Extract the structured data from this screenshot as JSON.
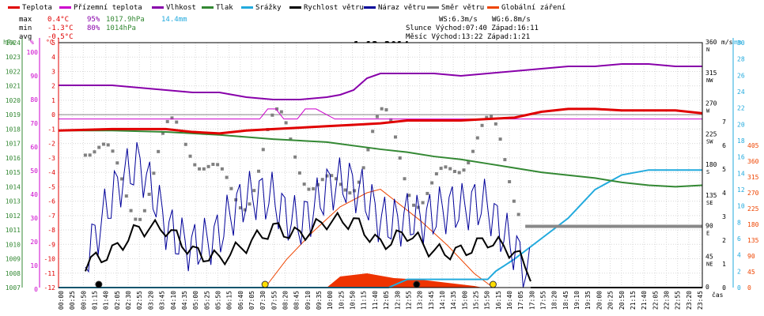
{
  "chart_data": {
    "type": "line",
    "title": "1.12.2014",
    "legend": [
      {
        "name": "Teplota",
        "color": "#e00000"
      },
      {
        "name": "Přízemní teplota",
        "color": "#cc00cc"
      },
      {
        "name": "Vlhkost",
        "color": "#8800aa"
      },
      {
        "name": "Tlak",
        "color": "#338833"
      },
      {
        "name": "Srážky",
        "color": "#22aadd"
      },
      {
        "name": "Rychlost větru",
        "color": "#000000"
      },
      {
        "name": "Náraz větru",
        "color": "#000099"
      },
      {
        "name": "Směr větru",
        "color": "#777777"
      },
      {
        "name": "Globální záření",
        "color": "#ee4400"
      }
    ],
    "stats": {
      "max_label": "max",
      "min_label": "min",
      "avg_label": "avg",
      "max_temp": "0.4°C",
      "max_hum": "95%",
      "max_pres": "1017.9hPa",
      "max_rain": "14.4mm",
      "min_temp": "-1.3°C",
      "min_hum": "80%",
      "min_pres": "1014hPa",
      "avg_temp": "-0.5°C"
    },
    "info": {
      "ws": "WS:6.3m/s",
      "wg": "WG:6.8m/s",
      "sun": "Slunce Východ:07:40   Západ:16:11",
      "moon": "Měsíc  Východ:13:22   Západ:1:21"
    },
    "axes": {
      "hpa_label": "hPa",
      "pct_label": "%",
      "c_label": "°C",
      "ms_label": "m/s",
      "mm_label": "mm",
      "x_label": "čas",
      "hpa_ticks": [
        "1024",
        "1023",
        "1022",
        "1021",
        "1020",
        "1019",
        "1018",
        "1017",
        "1016",
        "1015",
        "1014",
        "1013",
        "1012",
        "1011",
        "1010",
        "1009",
        "1008",
        "1007"
      ],
      "pct_ticks": [
        "100",
        "90",
        "80",
        "70",
        "60",
        "50",
        "40",
        "30",
        "20",
        "10",
        "0"
      ],
      "c_ticks": [
        "5",
        "4",
        "3",
        "2",
        "1",
        "0",
        "-1",
        "-2",
        "-3",
        "-4",
        "-5",
        "-6",
        "-7",
        "-8",
        "-9",
        "-10",
        "-11",
        "-12"
      ],
      "dir_ticks": [
        {
          "deg": "360",
          "dir": "N"
        },
        {
          "deg": "315",
          "dir": "NW"
        },
        {
          "deg": "270",
          "dir": "W"
        },
        {
          "deg": "225",
          "dir": "SW"
        },
        {
          "deg": "180",
          "dir": "S"
        },
        {
          "deg": "135",
          "dir": "SE"
        },
        {
          "deg": "90",
          "dir": "E"
        },
        {
          "deg": "45",
          "dir": "NE"
        },
        {
          "deg": "0",
          "dir": ""
        }
      ],
      "ms_ticks": [
        "7",
        "6",
        "5",
        "4",
        "3",
        "2",
        "1",
        "0"
      ],
      "mm_ticks": [
        "30",
        "28",
        "26",
        "24",
        "22",
        "20",
        "18",
        "16",
        "14",
        "12",
        "10",
        "8",
        "6",
        "4",
        "2",
        "0"
      ],
      "rad_ticks": [
        "405",
        "360",
        "315",
        "270",
        "225",
        "180",
        "135",
        "90",
        "45",
        "0"
      ]
    },
    "x_ticks": [
      "00:00",
      "00:25",
      "00:50",
      "01:15",
      "01:40",
      "02:05",
      "02:30",
      "02:55",
      "03:20",
      "03:45",
      "04:10",
      "04:35",
      "05:00",
      "05:25",
      "05:50",
      "06:15",
      "06:40",
      "07:05",
      "07:30",
      "07:55",
      "08:20",
      "08:45",
      "09:10",
      "09:35",
      "10:00",
      "10:25",
      "10:50",
      "11:15",
      "11:40",
      "12:05",
      "12:30",
      "12:55",
      "13:20",
      "13:45",
      "14:10",
      "14:35",
      "15:00",
      "15:25",
      "15:50",
      "16:15",
      "16:40",
      "17:05",
      "17:30",
      "17:55",
      "18:20",
      "18:45",
      "19:10",
      "19:35",
      "20:00",
      "20:25",
      "20:50",
      "21:15",
      "21:40",
      "22:05",
      "22:30",
      "22:55",
      "23:20",
      "23:45"
    ],
    "series": [
      {
        "name": "Vlhkost",
        "unit": "%",
        "x": [
          0,
          1,
          2,
          3,
          4,
          5,
          6,
          7,
          8,
          9,
          10,
          10.5,
          11,
          11.5,
          12,
          13,
          14,
          15,
          16,
          17,
          18,
          19,
          20,
          21,
          22,
          23,
          24
        ],
        "values": [
          86,
          86,
          86,
          85,
          84,
          83,
          83,
          81,
          80,
          80,
          81,
          82,
          84,
          89,
          91,
          91,
          91,
          90,
          91,
          92,
          93,
          94,
          94,
          95,
          95,
          94,
          94
        ]
      },
      {
        "name": "Přízemní teplota",
        "unit": "°C",
        "x": [
          0,
          7.5,
          7.8,
          8.1,
          8.4,
          8.9,
          9.2,
          9.6,
          10.3,
          10.6,
          10.9,
          11.2,
          24
        ],
        "values": [
          -0.3,
          -0.3,
          0.4,
          0.4,
          -0.3,
          -0.3,
          0.4,
          0.4,
          -0.3,
          -0.3,
          -0.3,
          -0.3,
          -0.3
        ]
      },
      {
        "name": "Teplota",
        "unit": "°C",
        "x": [
          0,
          2,
          4,
          5,
          6,
          7,
          8,
          9,
          10,
          11,
          12,
          13,
          14,
          15,
          16,
          17,
          18,
          19,
          20,
          21,
          22,
          23,
          24
        ],
        "values": [
          -1.1,
          -1.0,
          -1.0,
          -1.2,
          -1.3,
          -1.1,
          -1.0,
          -0.9,
          -0.8,
          -0.7,
          -0.6,
          -0.4,
          -0.4,
          -0.4,
          -0.3,
          -0.2,
          0.2,
          0.4,
          0.4,
          0.3,
          0.3,
          0.3,
          0.1
        ]
      },
      {
        "name": "Tlak",
        "unit": "hPa",
        "x": [
          0,
          2,
          4,
          6,
          8,
          10,
          12,
          13,
          14,
          15,
          16,
          17,
          18,
          19,
          20,
          21,
          22,
          23,
          24
        ],
        "values": [
          1017.9,
          1017.9,
          1017.8,
          1017.6,
          1017.3,
          1017.1,
          1016.6,
          1016.4,
          1016.1,
          1015.9,
          1015.6,
          1015.3,
          1015.0,
          1014.8,
          1014.6,
          1014.3,
          1014.1,
          1014.0,
          1014.1
        ]
      },
      {
        "name": "Srážky",
        "unit": "mm",
        "x": [
          0,
          12.3,
          13.0,
          16.0,
          16.3,
          17.0,
          18.0,
          19.0,
          20.0,
          21.0,
          22.0,
          24.0
        ],
        "values": [
          0,
          0,
          1.0,
          1.0,
          2.0,
          3.5,
          6.0,
          8.5,
          12.0,
          13.8,
          14.4,
          14.4
        ]
      },
      {
        "name": "Rychlost větru",
        "unit": "m/s",
        "x": [
          1,
          2,
          3,
          4,
          5,
          6,
          7,
          8,
          9,
          10,
          11,
          12,
          13,
          14,
          15,
          16,
          17,
          18
        ],
        "values": [
          1.0,
          1.5,
          2.5,
          2.5,
          1.5,
          1.2,
          1.8,
          2.5,
          2.2,
          2.8,
          2.8,
          1.8,
          2.3,
          1.5,
          1.5,
          2.0,
          1.5,
          0
        ]
      },
      {
        "name": "Náraz větru",
        "unit": "m/s",
        "x": [
          1,
          2,
          3,
          4,
          5,
          6,
          7,
          8,
          9,
          10,
          11,
          12,
          13,
          14,
          15,
          16,
          17,
          18
        ],
        "values": [
          2.0,
          3.5,
          4.5,
          3.0,
          2.5,
          2.0,
          3.0,
          4.0,
          3.5,
          4.0,
          3.5,
          3.0,
          3.8,
          3.0,
          2.5,
          3.5,
          2.5,
          0
        ]
      },
      {
        "name": "Globální záření",
        "unit": "W/m2",
        "x": [
          7.7,
          8.5,
          9.5,
          10.5,
          11.5,
          12.0,
          12.5,
          13.5,
          14.5,
          15.5,
          16.2
        ],
        "values": [
          0,
          80,
          160,
          230,
          270,
          280,
          250,
          190,
          120,
          40,
          0
        ]
      }
    ]
  }
}
